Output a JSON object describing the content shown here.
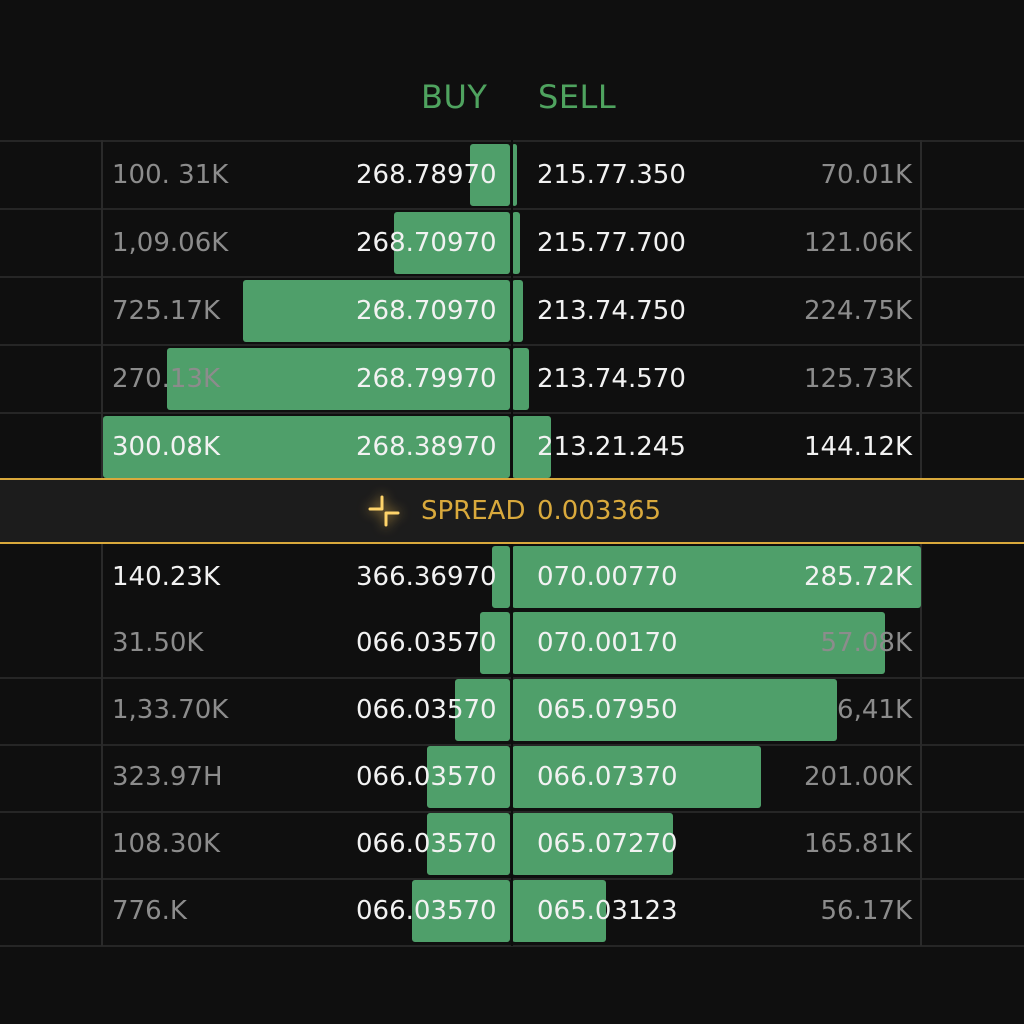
{
  "header": {
    "buy_label": "BUY",
    "sell_label": "SELL"
  },
  "colors": {
    "background": "#0f0f0f",
    "bar": "#4f9f6a",
    "header": "#4fa35f",
    "spread_accent": "#d9a93c"
  },
  "bids": [
    {
      "qty": "100. 31K",
      "price": "268.78970"
    },
    {
      "qty": "1,09.06K",
      "price": "268.70970"
    },
    {
      "qty": "725.17K",
      "price": "268.70970"
    },
    {
      "qty": "270.13K",
      "price": "268.79970"
    },
    {
      "qty": "300.08K",
      "price": "268.38970"
    }
  ],
  "bids_depth": [
    0.098,
    0.284,
    0.657,
    0.843,
    1.0
  ],
  "asks": [
    {
      "price": "215.77.350",
      "qty": "70.01K"
    },
    {
      "price": "215.77.700",
      "qty": "121.06K"
    },
    {
      "price": "213.74.750",
      "qty": "224.75K"
    },
    {
      "price": "213.74.570",
      "qty": "125.73K"
    },
    {
      "price": "213.21.245",
      "qty": "144.12K"
    }
  ],
  "asks_depth": [
    0.012,
    0.02,
    0.027,
    0.042,
    0.096
  ],
  "spread": {
    "label": "SPREAD",
    "value": "0.003365",
    "icon": "collapse-arrows-icon"
  },
  "lower_rows": [
    {
      "buy_qty": "140.23K",
      "buy_price": "366.36970",
      "sell_price": "070.00770",
      "sell_qty": "285.72K"
    },
    {
      "buy_qty": "31.50K",
      "buy_price": "066.03570",
      "sell_price": "070.00170",
      "sell_qty": "57.08K"
    },
    {
      "buy_qty": "1,33.70K",
      "buy_price": "066.03570",
      "sell_price": "065.07950",
      "sell_qty": "6,41K"
    },
    {
      "buy_qty": "323.97H",
      "buy_price": "066.03570",
      "sell_price": "066.07370",
      "sell_qty": "201.00K"
    },
    {
      "buy_qty": "108.30K",
      "buy_price": "066.03570",
      "sell_price": "065.07270",
      "sell_qty": "165.81K"
    },
    {
      "buy_qty": "776.K",
      "buy_price": "066.03570",
      "sell_price": "065.03123",
      "sell_qty": "56.17K"
    }
  ],
  "lower_buy_depth": [
    0.044,
    0.073,
    0.134,
    0.205,
    0.205,
    0.241
  ],
  "lower_sell_depth": [
    1.0,
    0.912,
    0.795,
    0.61,
    0.393,
    0.229
  ]
}
